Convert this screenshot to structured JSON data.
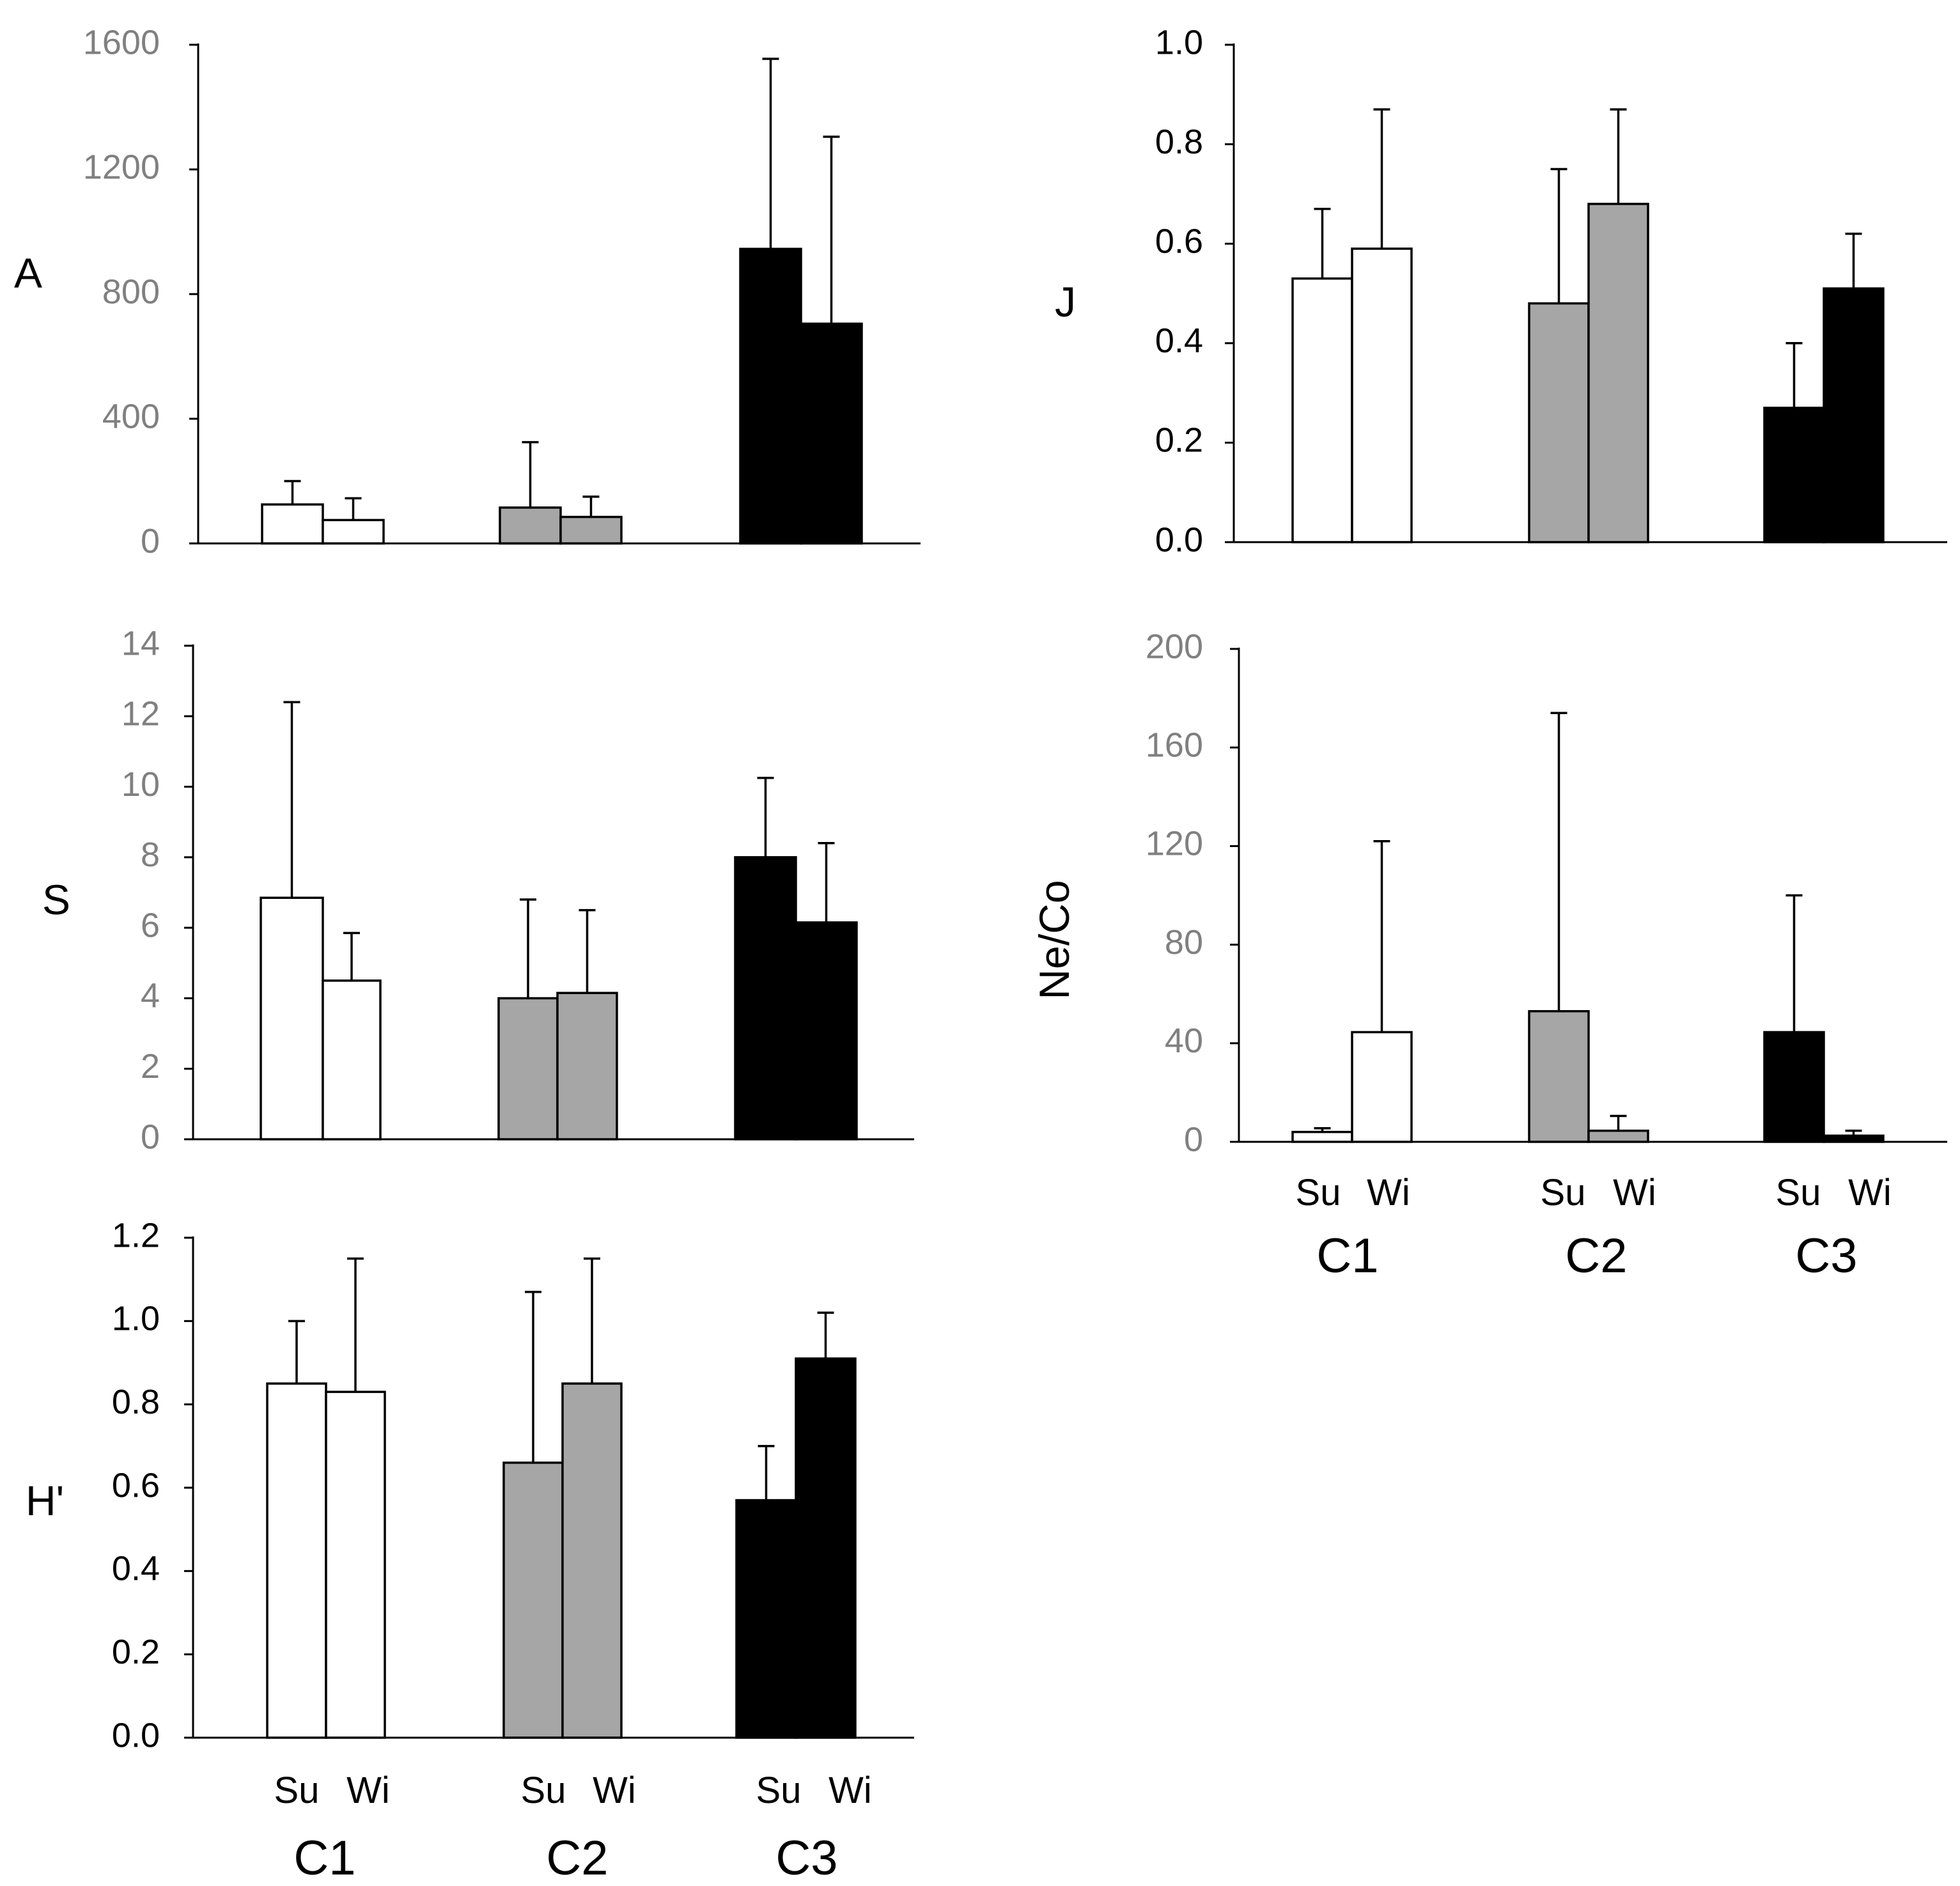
{
  "colors": {
    "C1": "#ffffff",
    "C2": "#a6a6a6",
    "C3": "#000000",
    "tick_gray": "#808080",
    "tick_black": "#000000"
  },
  "x_labels": {
    "seasons": [
      "Su",
      "Wi"
    ],
    "clusters": [
      "C1",
      "C2",
      "C3"
    ]
  },
  "chart_data": [
    {
      "id": "A",
      "type": "bar",
      "ylabel": "A",
      "ylim": [
        0,
        1600
      ],
      "ticks": [
        "0",
        "400",
        "800",
        "1200",
        "1600"
      ],
      "tick_values": [
        0,
        400,
        800,
        1200,
        1600
      ],
      "tick_color": "gray",
      "categories": [
        "C1",
        "C2",
        "C3"
      ],
      "series": [
        {
          "name": "Su",
          "values": [
            125,
            115,
            945
          ],
          "errors": [
            75,
            210,
            610
          ]
        },
        {
          "name": "Wi",
          "values": [
            75,
            85,
            705
          ],
          "errors": [
            70,
            65,
            600
          ]
        }
      ]
    },
    {
      "id": "J",
      "type": "bar",
      "ylabel": "J",
      "ylim": [
        0,
        1.0
      ],
      "ticks": [
        "0.0",
        "0.2",
        "0.4",
        "0.6",
        "0.8",
        "1.0"
      ],
      "tick_values": [
        0,
        0.2,
        0.4,
        0.6,
        0.8,
        1.0
      ],
      "tick_color": "black",
      "categories": [
        "C1",
        "C2",
        "C3"
      ],
      "series": [
        {
          "name": "Su",
          "values": [
            0.53,
            0.48,
            0.27
          ],
          "errors": [
            0.14,
            0.27,
            0.13
          ]
        },
        {
          "name": "Wi",
          "values": [
            0.59,
            0.68,
            0.51
          ],
          "errors": [
            0.28,
            0.19,
            0.11
          ]
        }
      ]
    },
    {
      "id": "S",
      "type": "bar",
      "ylabel": "S",
      "ylim": [
        0,
        14
      ],
      "ticks": [
        "0",
        "2",
        "4",
        "6",
        "8",
        "10",
        "12",
        "14"
      ],
      "tick_values": [
        0,
        2,
        4,
        6,
        8,
        10,
        12,
        14
      ],
      "tick_color": "gray",
      "categories": [
        "C1",
        "C2",
        "C3"
      ],
      "series": [
        {
          "name": "Su",
          "values": [
            6.85,
            4.0,
            8.0
          ],
          "errors": [
            5.55,
            2.8,
            2.25
          ]
        },
        {
          "name": "Wi",
          "values": [
            4.5,
            4.15,
            6.15
          ],
          "errors": [
            1.35,
            2.35,
            2.25
          ]
        }
      ]
    },
    {
      "id": "NeCo",
      "type": "bar",
      "ylabel": "Ne/Co",
      "ylim": [
        0,
        200
      ],
      "ticks": [
        "0",
        "40",
        "80",
        "120",
        "160",
        "200"
      ],
      "tick_values": [
        0,
        40,
        80,
        120,
        160,
        200
      ],
      "tick_color": "gray",
      "categories": [
        "C1",
        "C2",
        "C3"
      ],
      "series": [
        {
          "name": "Su",
          "values": [
            4,
            53,
            44.5
          ],
          "errors": [
            1.5,
            121,
            55.5
          ]
        },
        {
          "name": "Wi",
          "values": [
            44.5,
            4.5,
            2.5
          ],
          "errors": [
            77.5,
            6,
            2
          ]
        }
      ]
    },
    {
      "id": "H",
      "type": "bar",
      "ylabel": "H'",
      "ylim": [
        0,
        1.2
      ],
      "ticks": [
        "0.0",
        "0.2",
        "0.4",
        "0.6",
        "0.8",
        "1.0",
        "1.2"
      ],
      "tick_values": [
        0,
        0.2,
        0.4,
        0.6,
        0.8,
        1.0,
        1.2
      ],
      "tick_color": "black",
      "categories": [
        "C1",
        "C2",
        "C3"
      ],
      "series": [
        {
          "name": "Su",
          "values": [
            0.85,
            0.66,
            0.57
          ],
          "errors": [
            0.15,
            0.41,
            0.13
          ]
        },
        {
          "name": "Wi",
          "values": [
            0.83,
            0.85,
            0.91
          ],
          "errors": [
            0.32,
            0.3,
            0.11
          ]
        }
      ]
    }
  ]
}
